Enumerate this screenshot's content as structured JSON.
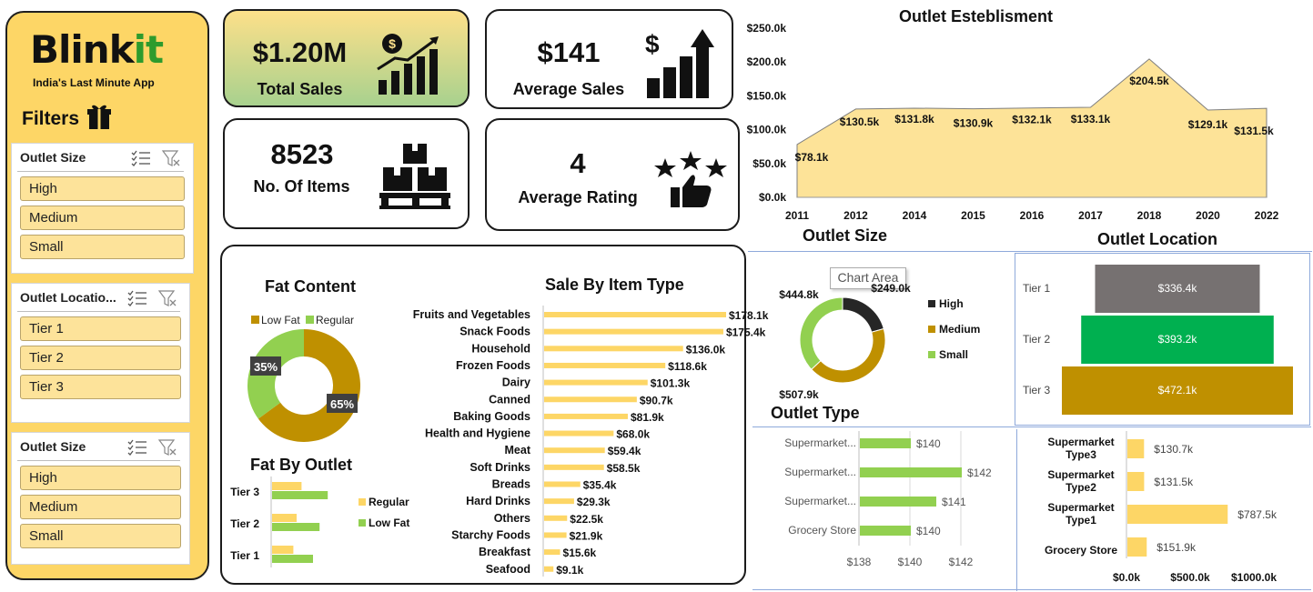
{
  "brand": {
    "name_main": "Blink",
    "name_accent": "it",
    "tagline": "India's Last Minute App"
  },
  "filters": {
    "title": "Filters",
    "slicers": [
      {
        "title": "Outlet Size",
        "items": [
          "High",
          "Medium",
          "Small"
        ]
      },
      {
        "title": "Outlet Locatio...",
        "items": [
          "Tier 1",
          "Tier 2",
          "Tier 3"
        ]
      },
      {
        "title": "Outlet Size",
        "items": [
          "High",
          "Medium",
          "Small"
        ]
      }
    ]
  },
  "kpis": {
    "total_sales": {
      "value": "$1.20M",
      "label": "Total Sales"
    },
    "average_sales": {
      "value": "$141",
      "label": "Average Sales"
    },
    "items": {
      "value": "8523",
      "label": "No. Of Items"
    },
    "rating": {
      "value": "4",
      "label": "Average Rating"
    }
  },
  "tooltip": "Chart Area",
  "colors": {
    "yellow": "#fdd666",
    "gold": "#bf9000",
    "green": "#92d050",
    "dark": "#262626",
    "grey": "#767171",
    "bright_green": "#00b050"
  },
  "chart_data": [
    {
      "id": "outlet_est",
      "type": "area",
      "title": "Outlet Esteblisment",
      "x": [
        "2011",
        "2012",
        "2014",
        "2015",
        "2016",
        "2017",
        "2018",
        "2020",
        "2022"
      ],
      "values": [
        78.1,
        130.5,
        131.8,
        130.9,
        132.1,
        133.1,
        204.5,
        129.1,
        131.5
      ],
      "labels": [
        "$78.1k",
        "$130.5k",
        "$131.8k",
        "$130.9k",
        "$132.1k",
        "$133.1k",
        "$204.5k",
        "$129.1k",
        "$131.5k"
      ],
      "yticks": [
        "$0.0k",
        "$50.0k",
        "$100.0k",
        "$150.0k",
        "$200.0k",
        "$250.0k"
      ],
      "ylim": [
        0,
        250
      ]
    },
    {
      "id": "fat_content",
      "type": "pie",
      "title": "Fat Content",
      "legend": [
        "Low Fat",
        "Regular"
      ],
      "values": [
        65,
        35
      ],
      "labels": [
        "65%",
        "35%"
      ]
    },
    {
      "id": "item_type",
      "type": "bar",
      "title": "Sale By Item Type",
      "categories": [
        "Fruits and Vegetables",
        "Snack Foods",
        "Household",
        "Frozen Foods",
        "Dairy",
        "Canned",
        "Baking Goods",
        "Health and Hygiene",
        "Meat",
        "Soft Drinks",
        "Breads",
        "Hard Drinks",
        "Others",
        "Starchy Foods",
        "Breakfast",
        "Seafood"
      ],
      "values": [
        178.1,
        175.4,
        136.0,
        118.6,
        101.3,
        90.7,
        81.9,
        68.0,
        59.4,
        58.5,
        35.4,
        29.3,
        22.5,
        21.9,
        15.6,
        9.1
      ],
      "labels": [
        "$178.1k",
        "$175.4k",
        "$136.0k",
        "$118.6k",
        "$101.3k",
        "$90.7k",
        "$81.9k",
        "$68.0k",
        "$59.4k",
        "$58.5k",
        "$35.4k",
        "$29.3k",
        "$22.5k",
        "$21.9k",
        "$15.6k",
        "$9.1k"
      ]
    },
    {
      "id": "fat_by_outlet",
      "type": "bar",
      "title": "Fat By Outlet",
      "categories": [
        "Tier 3",
        "Tier 2",
        "Tier 1"
      ],
      "series": [
        {
          "name": "Regular",
          "values": [
            0.9,
            0.75,
            0.65
          ]
        },
        {
          "name": "Low Fat",
          "values": [
            1.7,
            1.45,
            1.25
          ]
        }
      ]
    },
    {
      "id": "outlet_size",
      "type": "pie",
      "title": "Outlet Size",
      "legend": [
        "High",
        "Medium",
        "Small"
      ],
      "values": [
        249.0,
        507.9,
        444.8
      ],
      "labels": [
        "$249.0k",
        "$507.9k",
        "$444.8k"
      ]
    },
    {
      "id": "outlet_location",
      "type": "bar",
      "title": "Outlet Location",
      "categories": [
        "Tier 1",
        "Tier 2",
        "Tier 3"
      ],
      "values": [
        336.4,
        393.2,
        472.1
      ],
      "labels": [
        "$336.4k",
        "$393.2k",
        "$472.1k"
      ]
    },
    {
      "id": "outlet_type_avg",
      "type": "bar",
      "title": "Outlet Type",
      "categories": [
        "Supermarket...",
        "Supermarket...",
        "Supermarket...",
        "Grocery Store"
      ],
      "values": [
        140,
        142,
        141,
        140
      ],
      "labels": [
        "$140",
        "$142",
        "$141",
        "$140"
      ],
      "xticks": [
        "$138",
        "$140",
        "$142"
      ],
      "xlim": [
        138,
        143
      ]
    },
    {
      "id": "outlet_type_total",
      "type": "bar",
      "categories": [
        "Supermarket Type3",
        "Supermarket Type2",
        "Supermarket Type1",
        "Grocery Store"
      ],
      "values": [
        130.7,
        131.5,
        787.5,
        151.9
      ],
      "labels": [
        "$130.7k",
        "$131.5k",
        "$787.5k",
        "$151.9k"
      ],
      "xticks": [
        "$0.0k",
        "$500.0k",
        "$1000.0k"
      ],
      "xlim": [
        0,
        1000
      ]
    }
  ]
}
